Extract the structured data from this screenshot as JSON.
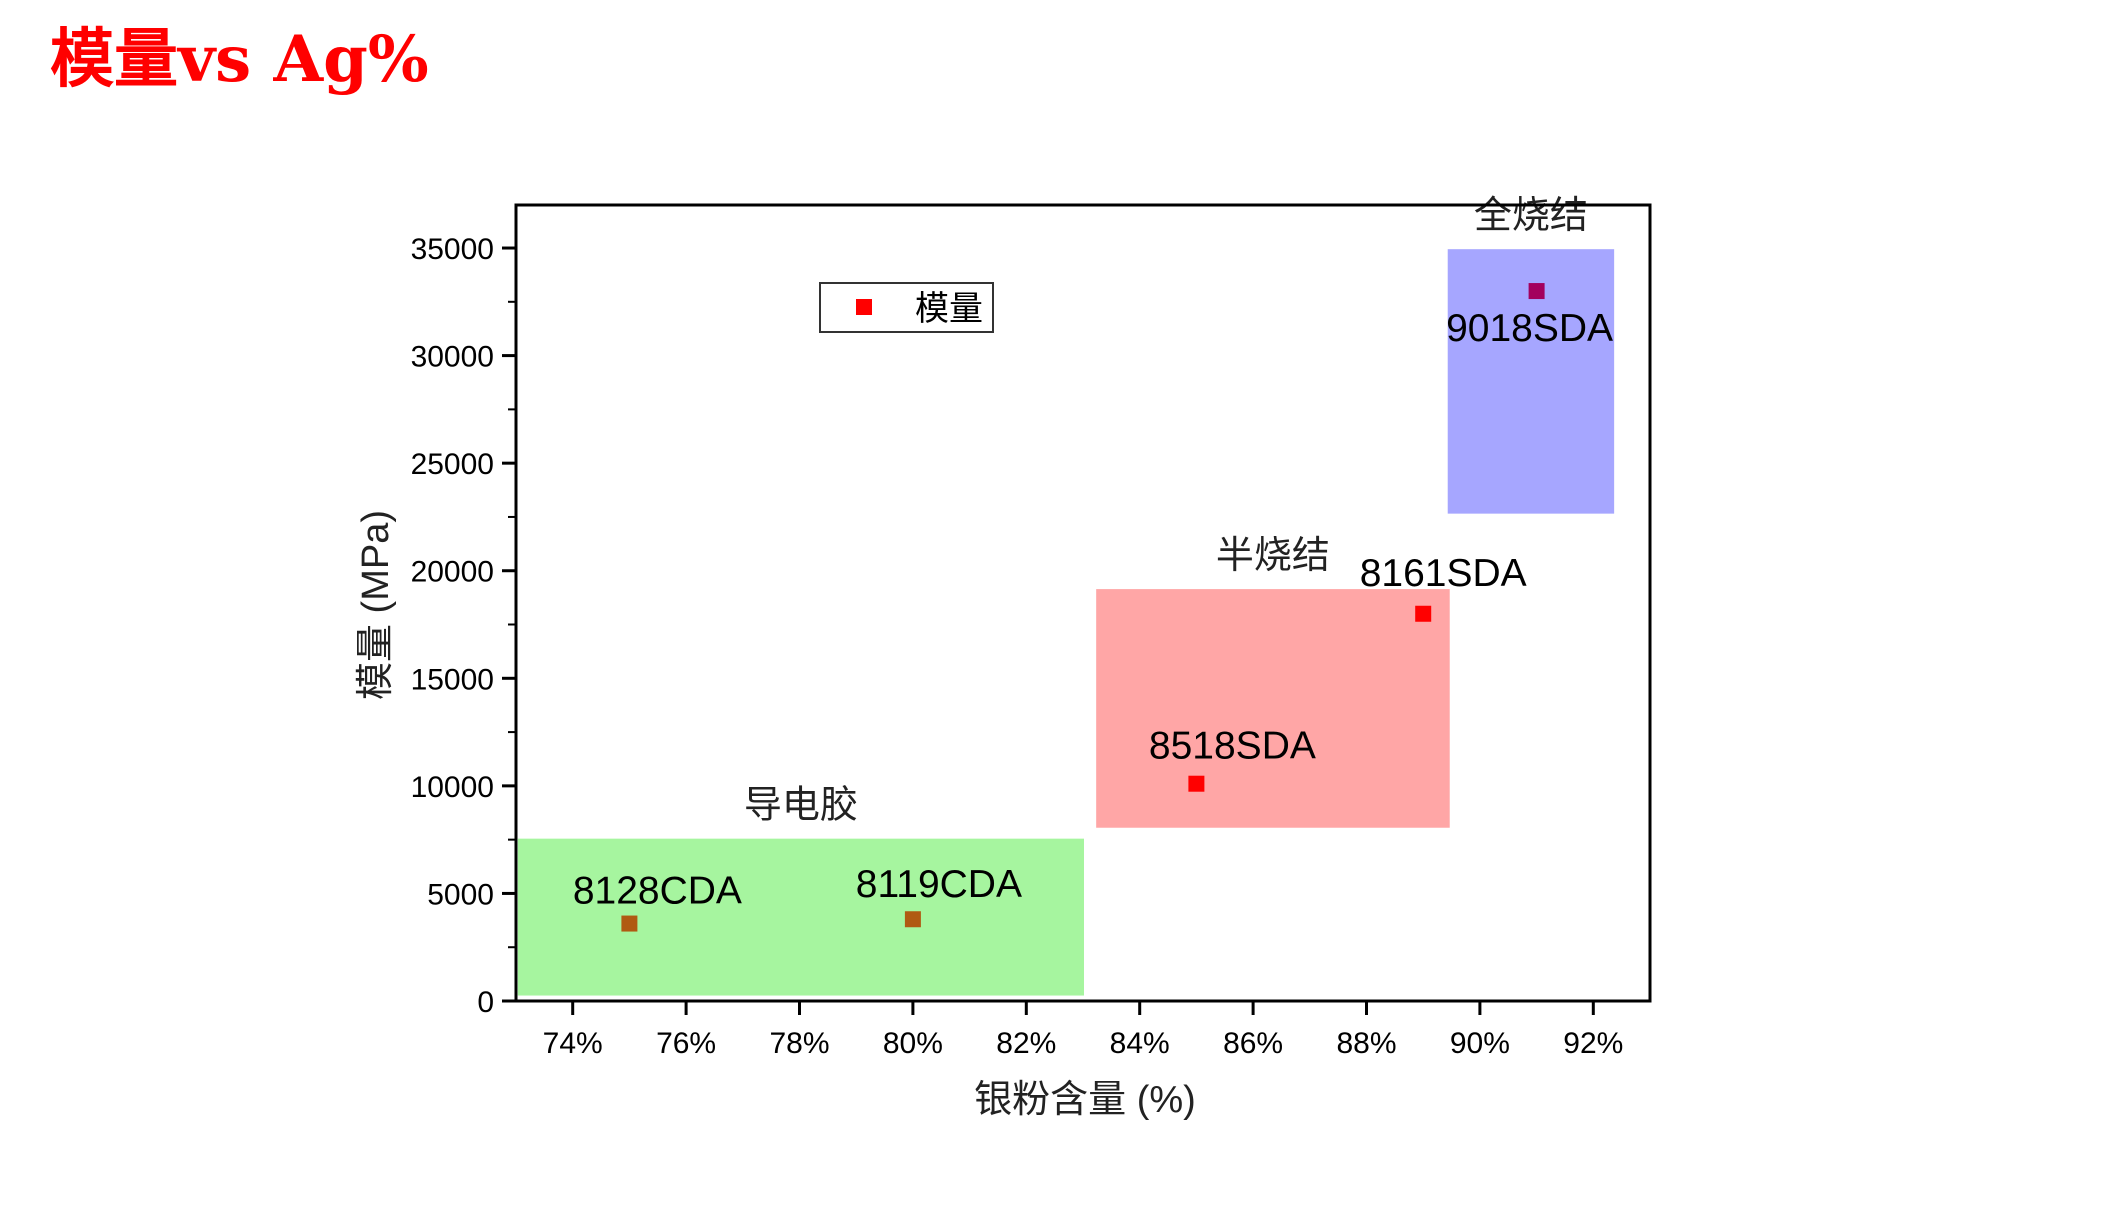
{
  "slide": {
    "title": "模量vs Ag%",
    "title_color": "#ff0000"
  },
  "chart_data": {
    "type": "scatter",
    "title": "",
    "xlabel": "银粉含量 (%)",
    "ylabel": "模量 (MPa)",
    "xlim": [
      73,
      93
    ],
    "ylim": [
      0,
      37000
    ],
    "x_ticks": [
      74,
      76,
      78,
      80,
      82,
      84,
      86,
      88,
      90,
      92
    ],
    "x_tick_labels": [
      "74%",
      "76%",
      "78%",
      "80%",
      "82%",
      "84%",
      "86%",
      "88%",
      "90%",
      "92%"
    ],
    "y_ticks": [
      0,
      5000,
      10000,
      15000,
      20000,
      25000,
      30000,
      35000
    ],
    "y_tick_labels": [
      "0",
      "5000",
      "10000",
      "15000",
      "20000",
      "25000",
      "30000",
      "35000"
    ],
    "grid": false,
    "legend": {
      "position": "upper-left-center",
      "label": "模量",
      "marker_color": "#ff0000"
    },
    "series": [
      {
        "name": "模量",
        "points": [
          {
            "x": 75,
            "y": 3600,
            "label": "8128CDA",
            "color": "#b05a12"
          },
          {
            "x": 80,
            "y": 3800,
            "label": "8119CDA",
            "color": "#b05a12"
          },
          {
            "x": 85,
            "y": 10100,
            "label": "8518SDA",
            "color": "#ff0000"
          },
          {
            "x": 89,
            "y": 18000,
            "label": "8161SDA",
            "color": "#ff0000"
          },
          {
            "x": 91,
            "y": 33000,
            "label": "9018SDA",
            "color": "#a3005e"
          }
        ]
      }
    ],
    "regions": [
      {
        "label": "导电胶",
        "x0": 73.05,
        "x1": 83.0,
        "y0": 300,
        "y1": 7500,
        "color": "#a6f59f"
      },
      {
        "label": "半烧结",
        "x0": 83.25,
        "x1": 89.45,
        "y0": 8100,
        "y1": 19100,
        "color": "#ffa6a6"
      },
      {
        "label": "全烧结",
        "x0": 89.45,
        "x1": 92.35,
        "y0": 22700,
        "y1": 34900,
        "color": "#a6a6ff"
      }
    ]
  }
}
